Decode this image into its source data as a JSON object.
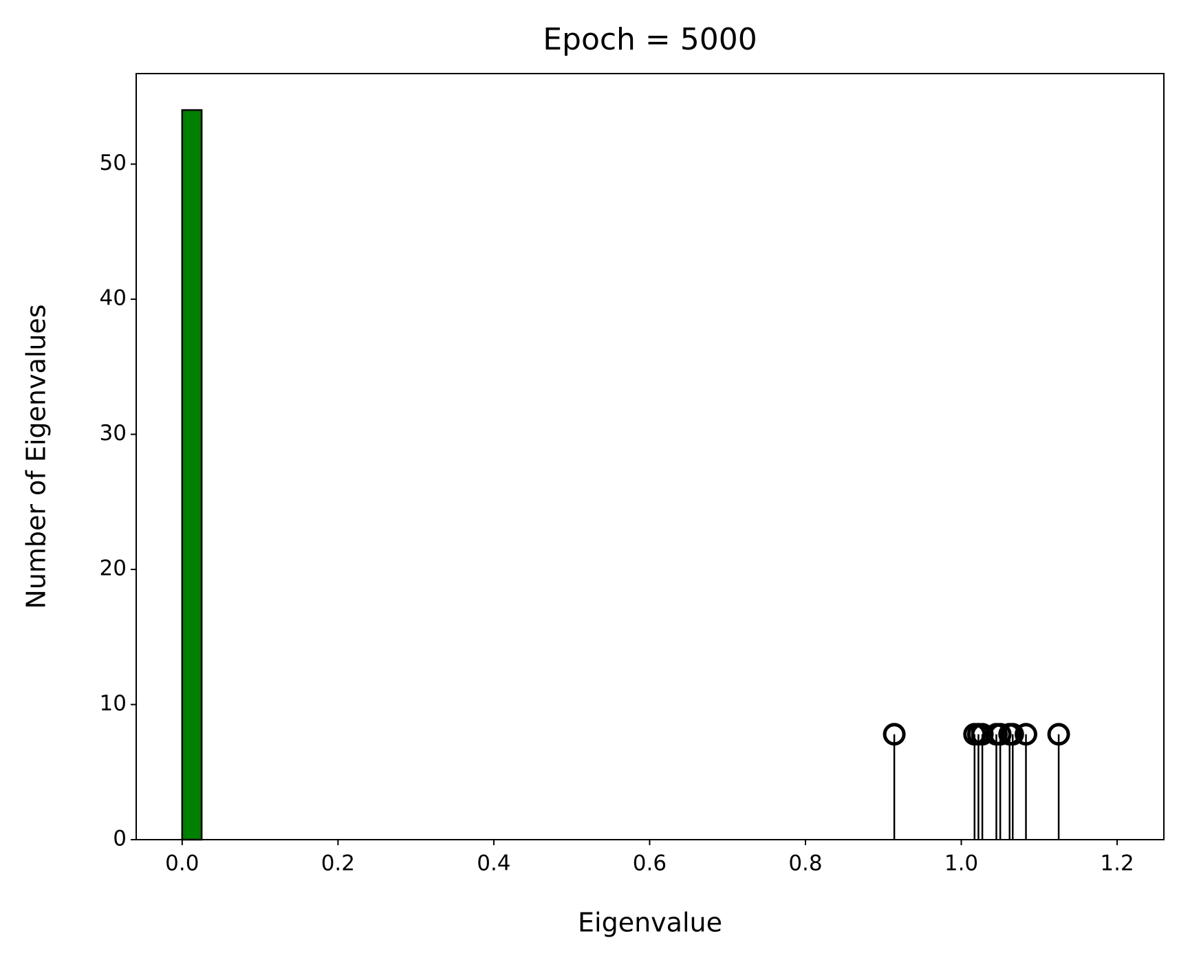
{
  "chart_data": {
    "type": "histogram",
    "title": "Epoch = 5000",
    "x_label": "Eigenvalue",
    "y_label": "Number of Eigenvalues",
    "bins": [
      0,
      0.025,
      0.05,
      0.075,
      0.1,
      0.125,
      0.15,
      0.175,
      0.2,
      0.225,
      0.25,
      0.275,
      0.3,
      0.325,
      0.35,
      0.375,
      0.4,
      0.425,
      0.45,
      0.475,
      0.5,
      0.525,
      0.55,
      0.575,
      0.6,
      0.625,
      0.65,
      0.675,
      0.7,
      0.725,
      0.75,
      0.775,
      0.8,
      0.825,
      0.85,
      0.875,
      0.9,
      0.925,
      0.95,
      0.975,
      1.0,
      1.025,
      1.05,
      1.075,
      1.1,
      1.125,
      1.15,
      1.175,
      1.2
    ],
    "counts": [
      54,
      0,
      0,
      0,
      0,
      0,
      0,
      0,
      0,
      0,
      0,
      0,
      0,
      0,
      0,
      0,
      0,
      0,
      0,
      0,
      0,
      0,
      0,
      0,
      0,
      0,
      0,
      0,
      0,
      0,
      0,
      0,
      0,
      0,
      0,
      0,
      0,
      0,
      0,
      0,
      0,
      0,
      0,
      0,
      0,
      0,
      0,
      0
    ],
    "color": "green",
    "stems": {
      "x": [
        0.914,
        1.017,
        1.022,
        1.027,
        1.045,
        1.05,
        1.062,
        1.066,
        1.083,
        1.125
      ],
      "values": [
        7.8,
        7.8,
        7.8,
        7.8,
        7.8,
        7.8,
        7.8,
        7.8,
        7.8,
        7.8
      ],
      "color": "black"
    },
    "xlim": [
      -0.059,
      1.26
    ],
    "ylim": [
      0,
      56.7
    ],
    "xticks": [
      {
        "value": 0,
        "label": "0.0"
      },
      0.2,
      0.4,
      0.6,
      0.8,
      {
        "value": 1,
        "label": "1.0"
      },
      1.2
    ],
    "yticks": [
      0,
      10,
      20,
      30,
      40,
      50
    ]
  }
}
